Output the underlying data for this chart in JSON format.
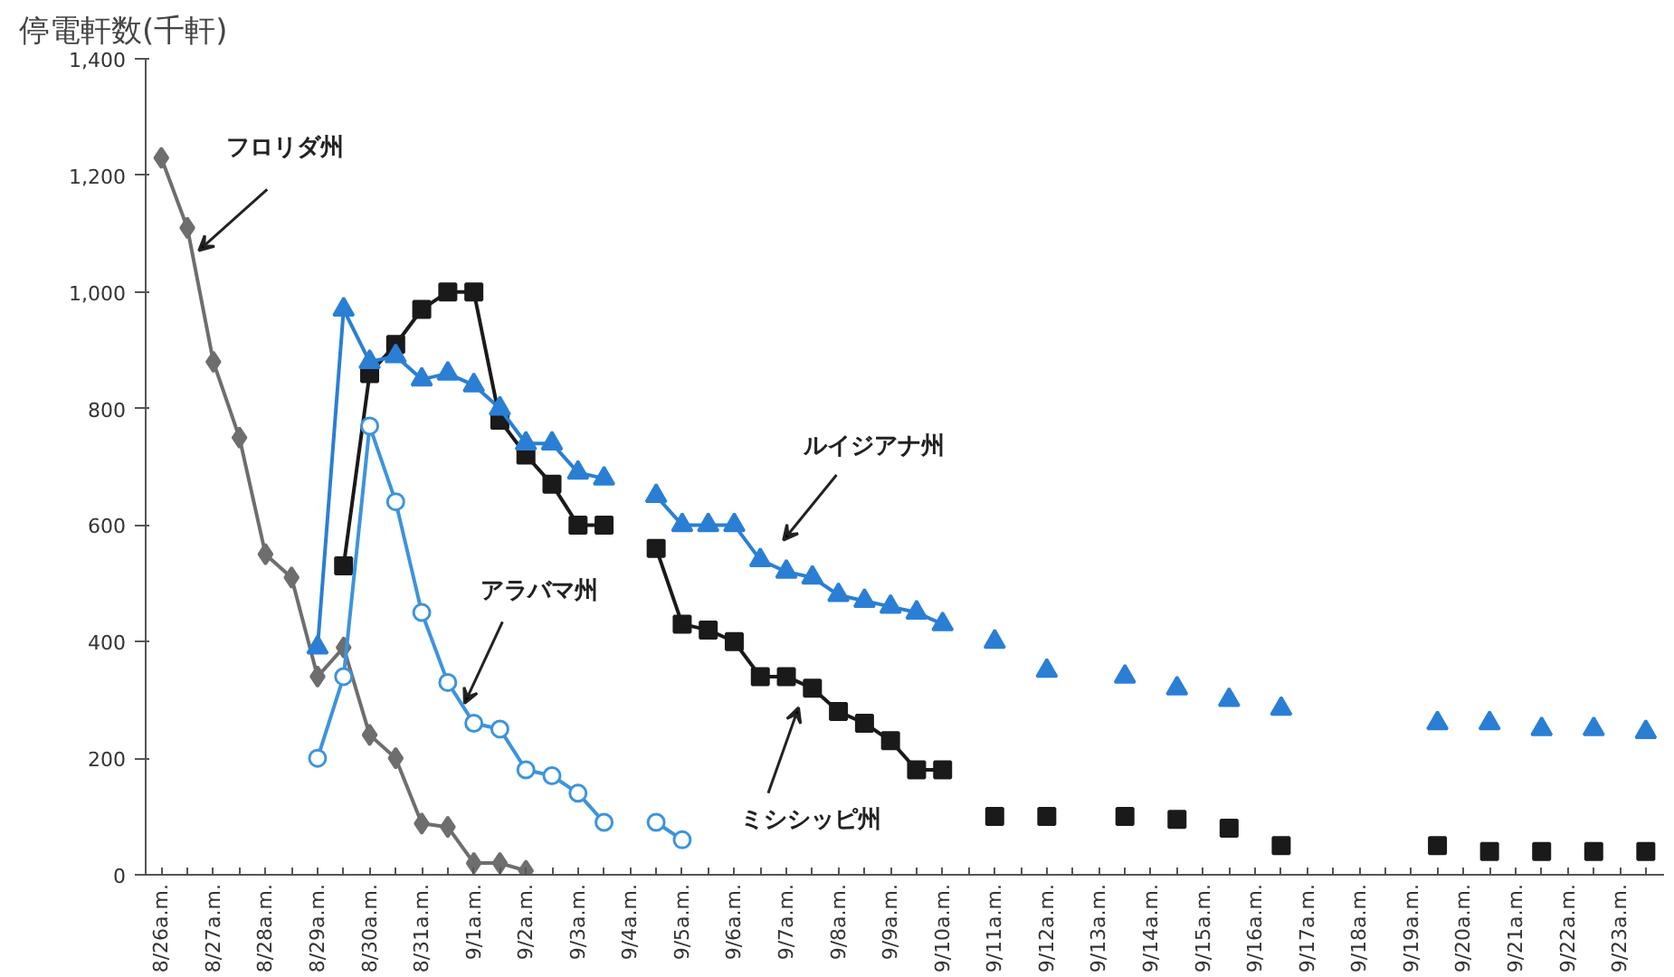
{
  "chart_data": {
    "type": "line",
    "ylabel": "停電軒数(千軒)",
    "categories": [
      "8/26a.m.",
      null,
      "8/27a.m.",
      null,
      "8/28a.m.",
      null,
      "8/29a.m.",
      null,
      "8/30a.m.",
      null,
      "8/31a.m.",
      null,
      "9/1a.m.",
      null,
      "9/2a.m.",
      null,
      "9/3a.m.",
      null,
      "9/4a.m.",
      null,
      "9/5a.m.",
      null,
      "9/6a.m.",
      null,
      "9/7a.m.",
      null,
      "9/8a.m.",
      null,
      "9/9a.m.",
      null,
      "9/10a.m.",
      null,
      "9/11a.m.",
      null,
      "9/12a.m.",
      null,
      "9/13a.m.",
      null,
      "9/14a.m.",
      null,
      "9/15a.m.",
      null,
      "9/16a.m.",
      null,
      "9/17a.m.",
      null,
      "9/18a.m.",
      null,
      "9/19a.m.",
      null,
      "9/20a.m.",
      null,
      "9/21a.m.",
      null,
      "9/22a.m.",
      null,
      "9/23a.m.",
      null
    ],
    "ylim": [
      0,
      1400
    ],
    "yticks": [
      {
        "value": 0,
        "label": "0"
      },
      {
        "value": 200,
        "label": "200"
      },
      {
        "value": 400,
        "label": "400"
      },
      {
        "value": 600,
        "label": "600"
      },
      {
        "value": 800,
        "label": "800"
      },
      {
        "value": 1000,
        "label": "1,000"
      },
      {
        "value": 1200,
        "label": "1,200"
      },
      {
        "value": 1400,
        "label": "1,400"
      }
    ],
    "line_style": "solid",
    "series": [
      {
        "name": "フロリダ州",
        "color": "#6e6e6e",
        "marker": "diamond",
        "values": [
          1230,
          1110,
          880,
          750,
          550,
          510,
          340,
          390,
          240,
          200,
          88,
          82,
          20,
          20,
          7,
          null,
          null,
          null,
          null,
          null,
          null,
          null,
          null,
          null,
          null,
          null,
          null,
          null,
          null,
          null,
          null,
          null,
          null,
          null,
          null,
          null,
          null,
          null,
          null,
          null,
          null,
          null,
          null,
          null,
          null,
          null,
          null,
          null,
          null,
          null,
          null,
          null,
          null,
          null,
          null,
          null,
          null,
          null
        ]
      },
      {
        "name": "ミシシッピ州",
        "color": "#1a1a1a",
        "marker": "square",
        "values": [
          null,
          null,
          null,
          null,
          null,
          null,
          null,
          530,
          860,
          910,
          970,
          1000,
          1000,
          780,
          720,
          670,
          600,
          600,
          null,
          560,
          430,
          420,
          400,
          340,
          340,
          320,
          280,
          260,
          230,
          180,
          180,
          null,
          100,
          null,
          100,
          null,
          null,
          100,
          null,
          95,
          null,
          80,
          null,
          50,
          null,
          null,
          null,
          null,
          null,
          50,
          null,
          40,
          null,
          40,
          null,
          40,
          null,
          40
        ]
      },
      {
        "name": "ルイジアナ州",
        "color": "#2a7fd4",
        "marker": "triangle",
        "values": [
          null,
          null,
          null,
          null,
          null,
          null,
          390,
          970,
          880,
          890,
          850,
          860,
          840,
          800,
          740,
          740,
          690,
          680,
          null,
          650,
          600,
          600,
          600,
          540,
          520,
          510,
          480,
          470,
          460,
          450,
          430,
          null,
          400,
          null,
          350,
          null,
          null,
          340,
          null,
          320,
          null,
          300,
          null,
          285,
          null,
          null,
          null,
          null,
          null,
          260,
          null,
          260,
          null,
          250,
          null,
          250,
          null,
          245
        ]
      },
      {
        "name": "アラバマ州",
        "color": "#3d94dc",
        "marker": "circle",
        "values": [
          null,
          null,
          null,
          null,
          null,
          null,
          200,
          340,
          770,
          640,
          450,
          330,
          260,
          250,
          180,
          170,
          140,
          90,
          null,
          90,
          60,
          null,
          null,
          null,
          null,
          null,
          null,
          null,
          null,
          null,
          null,
          null,
          null,
          null,
          null,
          null,
          null,
          null,
          null,
          null,
          null,
          null,
          null,
          null,
          null,
          null,
          null,
          null,
          null,
          null,
          null,
          null,
          null,
          null,
          null,
          null,
          null,
          null
        ]
      }
    ]
  }
}
